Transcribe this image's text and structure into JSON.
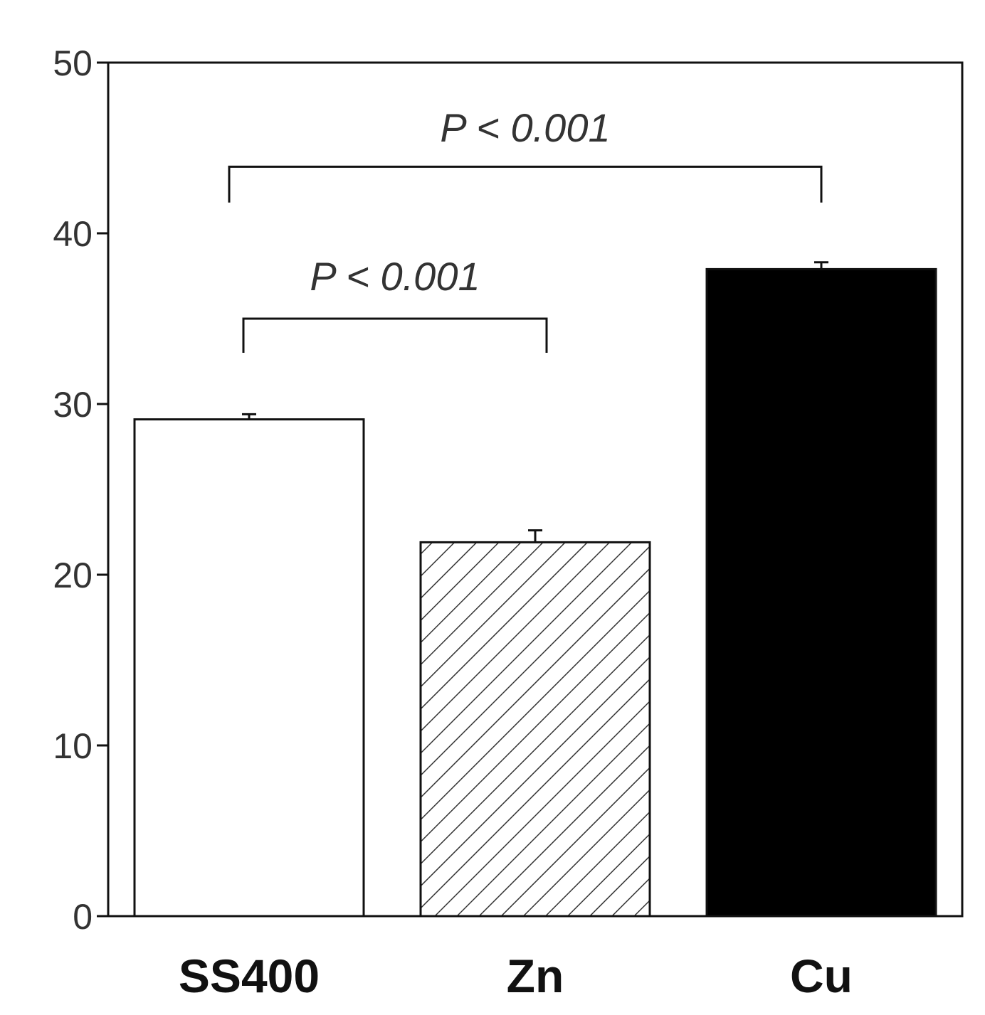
{
  "chart_data": {
    "type": "bar",
    "categories": [
      "SS400",
      "Zn",
      "Cu"
    ],
    "values": [
      29.1,
      21.9,
      37.9
    ],
    "errors": [
      0.3,
      0.7,
      0.4
    ],
    "ylim": [
      0,
      50
    ],
    "yticks": [
      "0",
      "10",
      "20",
      "30",
      "40",
      "50"
    ],
    "ytick_values": [
      0,
      10,
      20,
      30,
      40,
      50
    ],
    "bar_fills": [
      "white",
      "hatched",
      "black"
    ],
    "xlabel": "",
    "ylabel": "",
    "grid": false,
    "annotations": [
      {
        "text": "P < 0.001",
        "from": "SS400",
        "to": "Zn"
      },
      {
        "text": "P < 0.001",
        "from": "SS400",
        "to": "Cu"
      }
    ]
  }
}
